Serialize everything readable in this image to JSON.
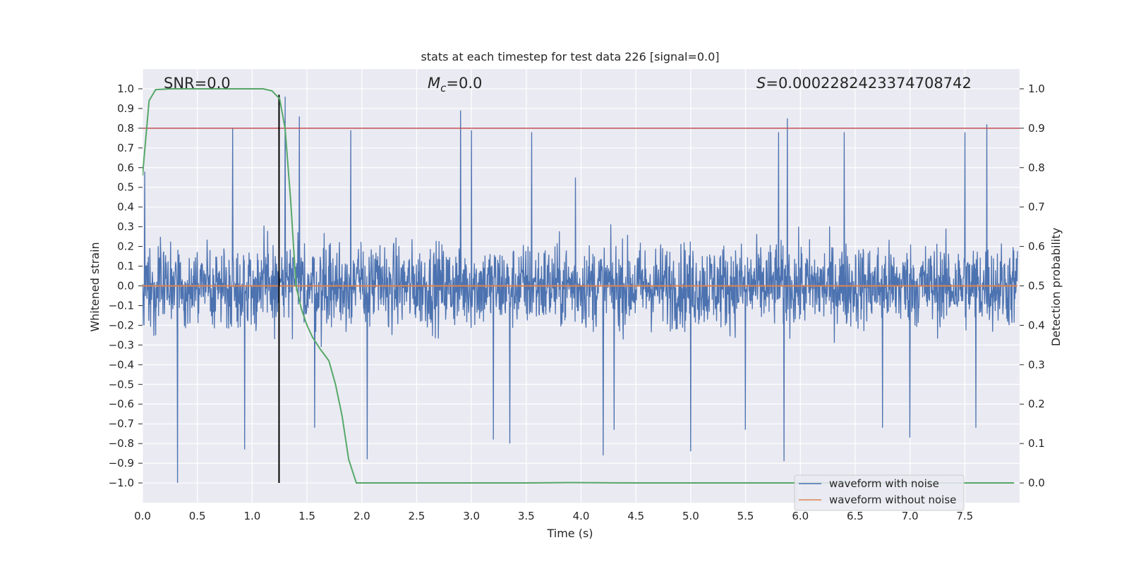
{
  "chart_data": {
    "type": "line",
    "title": "stats at each timestep for test data 226 [signal=0.0]",
    "xlabel": "Time (s)",
    "ylabel": "Whitened strain",
    "y2label": "Detection probability",
    "xlim": [
      0.0,
      8.0
    ],
    "ylim": [
      -1.1,
      1.1
    ],
    "y2lim": [
      -0.05,
      1.05
    ],
    "xticks": [
      "0.0",
      "0.5",
      "1.0",
      "1.5",
      "2.0",
      "2.5",
      "3.0",
      "3.5",
      "4.0",
      "4.5",
      "5.0",
      "5.5",
      "6.0",
      "6.5",
      "7.0",
      "7.5"
    ],
    "xtick_values": [
      0.0,
      0.5,
      1.0,
      1.5,
      2.0,
      2.5,
      3.0,
      3.5,
      4.0,
      4.5,
      5.0,
      5.5,
      6.0,
      6.5,
      7.0,
      7.5
    ],
    "yticks": [
      "1.0",
      "0.9",
      "0.8",
      "0.7",
      "0.6",
      "0.5",
      "0.4",
      "0.3",
      "0.2",
      "0.1",
      "0.0",
      "−0.1",
      "−0.2",
      "−0.3",
      "−0.4",
      "−0.5",
      "−0.6",
      "−0.7",
      "−0.8",
      "−0.9",
      "−1.0"
    ],
    "ytick_values": [
      1.0,
      0.9,
      0.8,
      0.7,
      0.6,
      0.5,
      0.4,
      0.3,
      0.2,
      0.1,
      0.0,
      -0.1,
      -0.2,
      -0.3,
      -0.4,
      -0.5,
      -0.6,
      -0.7,
      -0.8,
      -0.9,
      -1.0
    ],
    "y2ticks": [
      "1.0",
      "0.9",
      "0.8",
      "0.7",
      "0.6",
      "0.5",
      "0.4",
      "0.3",
      "0.2",
      "0.1",
      "0.0"
    ],
    "y2tick_values": [
      1.0,
      0.9,
      0.8,
      0.7,
      0.6,
      0.5,
      0.4,
      0.3,
      0.2,
      0.1,
      0.0
    ],
    "grid": true,
    "legend_position": "lower-right",
    "annotations": {
      "snr": "SNR=0.0",
      "mc_symbol": "M",
      "mc_sub": "c",
      "mc_value": "=0.0",
      "s_symbol": "S",
      "s_value": "=0.0002282423374708742"
    },
    "series": [
      {
        "name": "waveform with noise",
        "color": "#4c72b0",
        "kind": "noise",
        "t_range": [
          0.0,
          7.98
        ],
        "envelope": 0.4,
        "spikes": [
          [
            0.02,
            0.58
          ],
          [
            0.32,
            -1.0
          ],
          [
            0.82,
            0.8
          ],
          [
            0.93,
            -0.83
          ],
          [
            1.3,
            0.96
          ],
          [
            1.43,
            0.86
          ],
          [
            1.57,
            -0.72
          ],
          [
            1.9,
            0.79
          ],
          [
            2.05,
            -0.88
          ],
          [
            2.9,
            0.89
          ],
          [
            3.0,
            0.79
          ],
          [
            3.2,
            -0.78
          ],
          [
            3.35,
            -0.8
          ],
          [
            3.55,
            0.78
          ],
          [
            3.95,
            0.55
          ],
          [
            4.2,
            -0.86
          ],
          [
            4.3,
            -0.73
          ],
          [
            5.0,
            -0.84
          ],
          [
            5.5,
            -0.73
          ],
          [
            5.8,
            0.78
          ],
          [
            5.88,
            0.85
          ],
          [
            5.85,
            -0.89
          ],
          [
            6.4,
            0.78
          ],
          [
            6.75,
            -0.72
          ],
          [
            7.0,
            -0.77
          ],
          [
            7.5,
            0.78
          ],
          [
            7.7,
            0.82
          ],
          [
            7.6,
            -0.72
          ]
        ]
      },
      {
        "name": "waveform without noise",
        "color": "#dd8452",
        "x": [
          0.0,
          7.98
        ],
        "y": [
          0.0,
          0.0
        ]
      },
      {
        "name": "detection probability",
        "color": "#55a868",
        "axis": "right",
        "x": [
          0.0,
          0.06,
          0.12,
          0.25,
          0.5,
          0.75,
          1.0,
          1.1,
          1.18,
          1.25,
          1.3,
          1.35,
          1.4,
          1.45,
          1.5,
          1.55,
          1.62,
          1.7,
          1.76,
          1.82,
          1.88,
          1.95,
          2.5,
          3.0,
          3.5,
          3.9,
          4.5,
          5.0,
          6.0,
          7.0,
          7.95
        ],
        "y": [
          0.78,
          0.97,
          0.998,
          1.0,
          1.0,
          1.0,
          1.0,
          1.0,
          0.995,
          0.975,
          0.9,
          0.72,
          0.5,
          0.44,
          0.4,
          0.37,
          0.34,
          0.31,
          0.25,
          0.17,
          0.06,
          0.0,
          0.0,
          0.0,
          0.0,
          0.001,
          0.0,
          0.0,
          0.0,
          0.0,
          0.0
        ]
      }
    ],
    "reference_lines": [
      {
        "orientation": "horizontal",
        "axis": "right",
        "value": 0.9,
        "color": "#c44e52"
      },
      {
        "orientation": "vertical",
        "value": 1.245,
        "y_from": -1.0,
        "y_to": 0.97,
        "color": "#000000"
      }
    ]
  }
}
